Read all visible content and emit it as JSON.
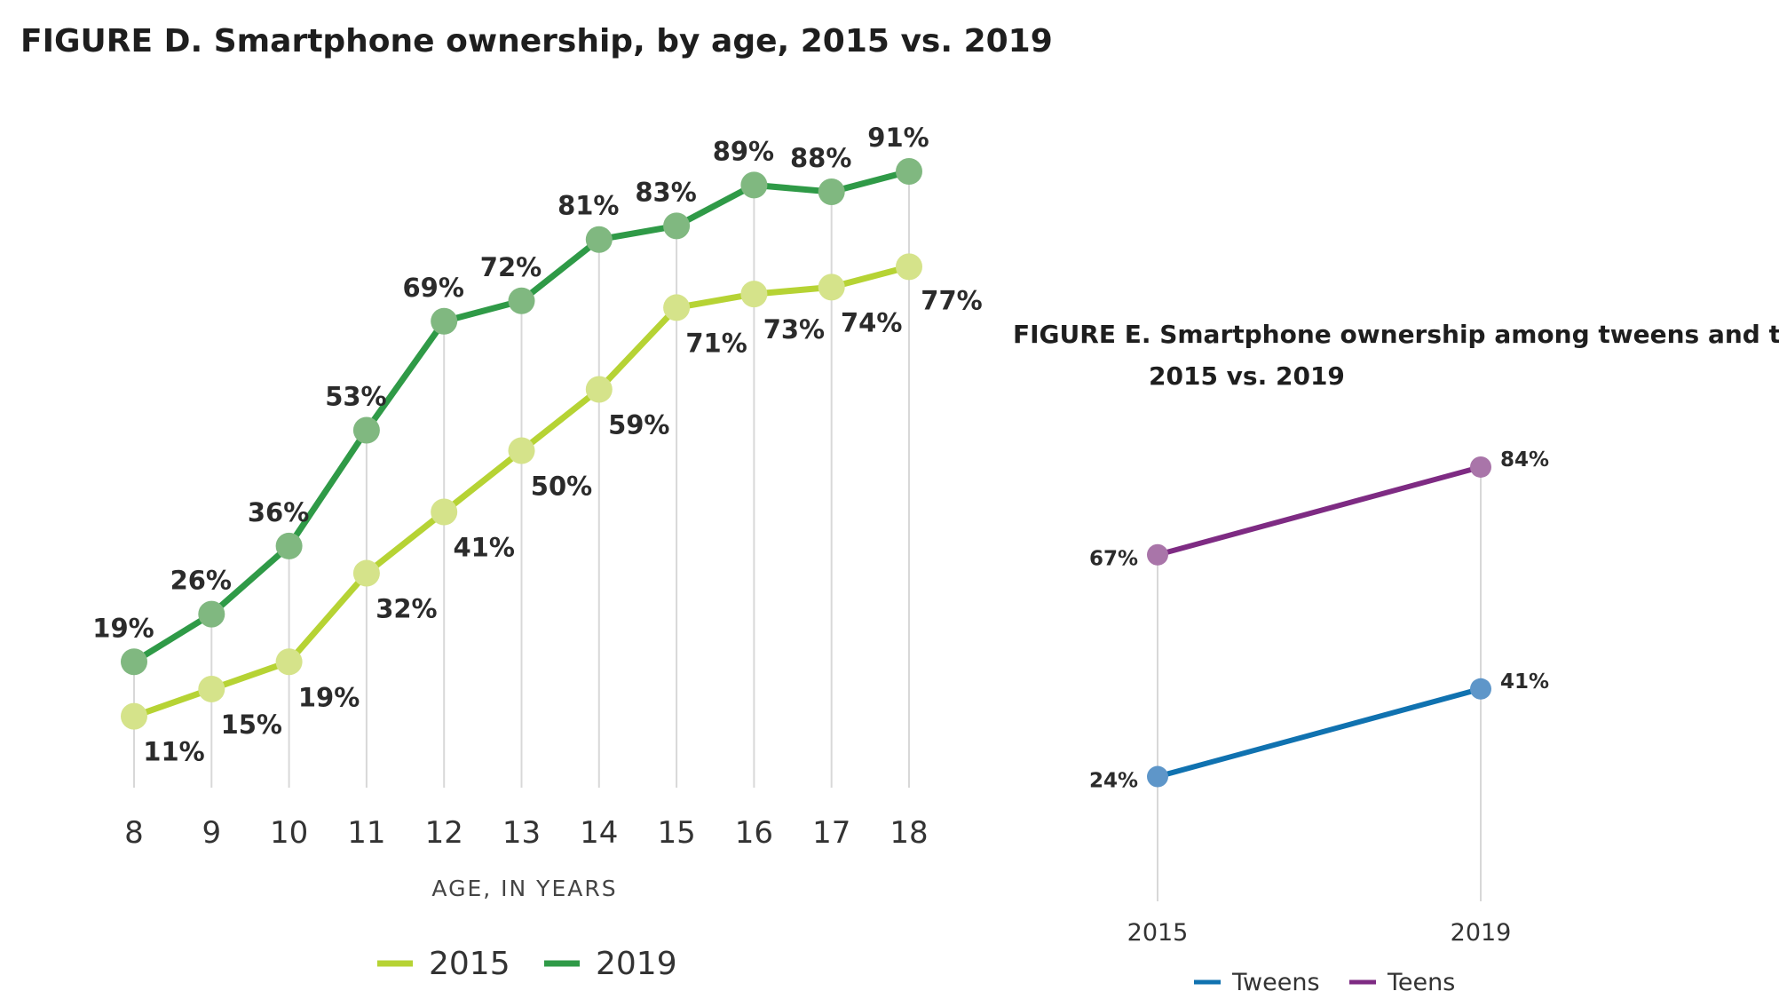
{
  "chart_data": [
    {
      "type": "line",
      "title": "FIGURE D. Smartphone ownership, by age, 2015 vs. 2019",
      "xlabel": "AGE, IN YEARS",
      "ylabel": "",
      "categories": [
        "8",
        "9",
        "10",
        "11",
        "12",
        "13",
        "14",
        "15",
        "16",
        "17",
        "18"
      ],
      "ylim": [
        0,
        100
      ],
      "grid": "vertical drop lines",
      "legend_placement": "bottom",
      "series": [
        {
          "name": "2015",
          "values": [
            11,
            15,
            19,
            32,
            41,
            50,
            59,
            71,
            73,
            74,
            77
          ],
          "labels": [
            "11%",
            "15%",
            "19%",
            "32%",
            "41%",
            "50%",
            "59%",
            "71%",
            "73%",
            "74%",
            "77%"
          ],
          "line_color": "#b6d334",
          "marker_color": "#d5e38a"
        },
        {
          "name": "2019",
          "values": [
            19,
            26,
            36,
            53,
            69,
            72,
            81,
            83,
            89,
            88,
            91
          ],
          "labels": [
            "19%",
            "26%",
            "36%",
            "53%",
            "69%",
            "72%",
            "81%",
            "83%",
            "89%",
            "88%",
            "91%"
          ],
          "line_color": "#2f9a47",
          "marker_color": "#80b880"
        }
      ]
    },
    {
      "type": "line",
      "title": "FIGURE E. Smartphone ownership among tweens and teens,",
      "title_line2": "2015 vs. 2019",
      "categories": [
        "2015",
        "2019"
      ],
      "ylim": [
        0,
        100
      ],
      "grid": "vertical drop lines",
      "legend_placement": "bottom",
      "series": [
        {
          "name": "Tweens",
          "values": [
            24,
            41
          ],
          "labels": [
            "24%",
            "41%"
          ],
          "line_color": "#1072b0",
          "marker_color": "#5e96c9"
        },
        {
          "name": "Teens",
          "values": [
            67,
            84
          ],
          "labels": [
            "67%",
            "84%"
          ],
          "line_color": "#7e2b83",
          "marker_color": "#a975a9"
        }
      ]
    }
  ]
}
